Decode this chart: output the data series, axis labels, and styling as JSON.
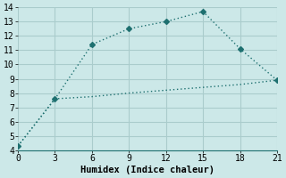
{
  "title": "",
  "xlabel": "Humidex (Indice chaleur)",
  "ylabel": "",
  "bg_color": "#cce8e8",
  "grid_color": "#aacccc",
  "line_color": "#1e7070",
  "xlim": [
    0,
    21
  ],
  "ylim": [
    4,
    14
  ],
  "xticks": [
    0,
    3,
    6,
    9,
    12,
    15,
    18,
    21
  ],
  "yticks": [
    4,
    5,
    6,
    7,
    8,
    9,
    10,
    11,
    12,
    13,
    14
  ],
  "line1_x": [
    0,
    3,
    6,
    9,
    12,
    15,
    18,
    21
  ],
  "line1_y": [
    4.3,
    7.6,
    11.4,
    12.5,
    13.0,
    13.7,
    11.1,
    8.9
  ],
  "line2_x": [
    0,
    3,
    6,
    9,
    12,
    15,
    18,
    21
  ],
  "line2_y": [
    4.3,
    7.6,
    7.75,
    8.0,
    8.2,
    8.4,
    8.6,
    8.9
  ],
  "marker_style": "D",
  "marker_size": 3,
  "line_width": 1.0,
  "font_size": 7,
  "xlabel_fontsize": 7.5,
  "font_family": "monospace"
}
